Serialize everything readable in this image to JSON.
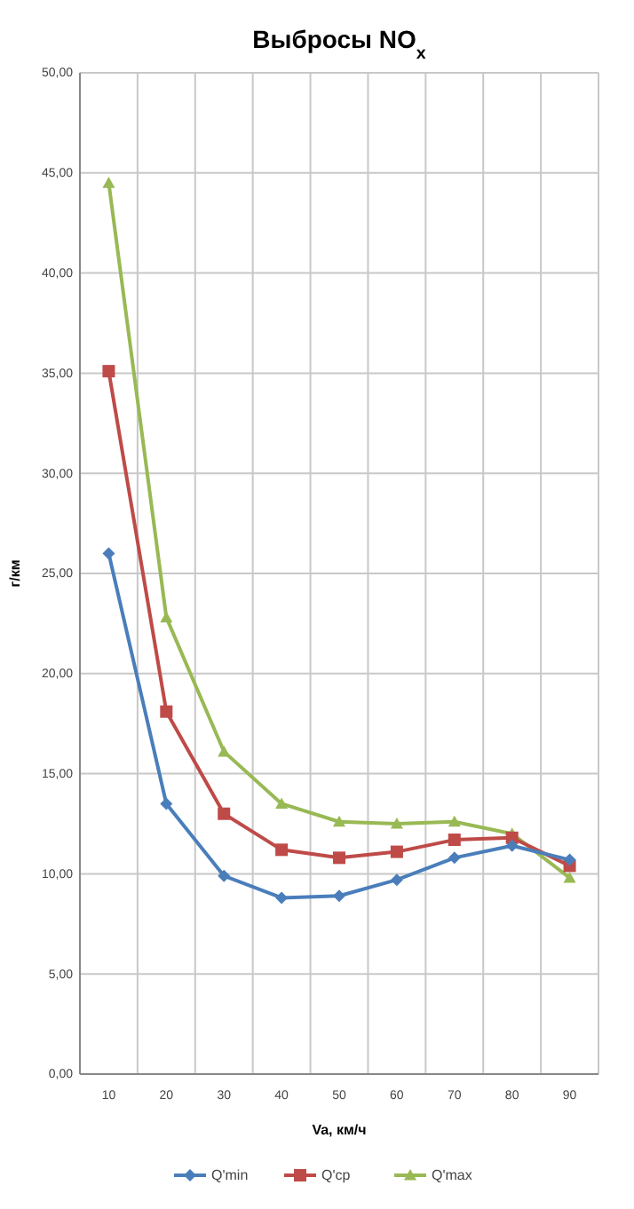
{
  "chart_data": {
    "type": "line",
    "title": "Выбросы NO$_{x}$",
    "xlabel": "Va, км/ч",
    "ylabel": "г/км",
    "categories": [
      "10",
      "20",
      "30",
      "40",
      "50",
      "60",
      "70",
      "80",
      "90"
    ],
    "series": [
      {
        "name": "Q'min",
        "color": "#4a7ebb",
        "marker": "diamond",
        "values": [
          26.0,
          13.5,
          9.9,
          8.8,
          8.9,
          9.7,
          10.8,
          11.4,
          10.7
        ]
      },
      {
        "name": "Q'ср",
        "color": "#be4b48",
        "marker": "square",
        "values": [
          35.1,
          18.1,
          13.0,
          11.2,
          10.8,
          11.1,
          11.7,
          11.8,
          10.4
        ]
      },
      {
        "name": "Q'max",
        "color": "#98b954",
        "marker": "triangle",
        "values": [
          44.5,
          22.8,
          16.1,
          13.5,
          12.6,
          12.5,
          12.6,
          12.0,
          9.8
        ]
      }
    ],
    "ylim": [
      0,
      50
    ],
    "yticks": [
      {
        "value": 0,
        "label": "0,00"
      },
      {
        "value": 5,
        "label": "5,00"
      },
      {
        "value": 10,
        "label": "10,00"
      },
      {
        "value": 15,
        "label": "15,00"
      },
      {
        "value": 20,
        "label": "20,00"
      },
      {
        "value": 25,
        "label": "25,00"
      },
      {
        "value": 30,
        "label": "30,00"
      },
      {
        "value": 35,
        "label": "35,00"
      },
      {
        "value": 40,
        "label": "40,00"
      },
      {
        "value": 45,
        "label": "45,00"
      },
      {
        "value": 50,
        "label": "50,00"
      }
    ],
    "grid": true,
    "legend": "bottom"
  }
}
